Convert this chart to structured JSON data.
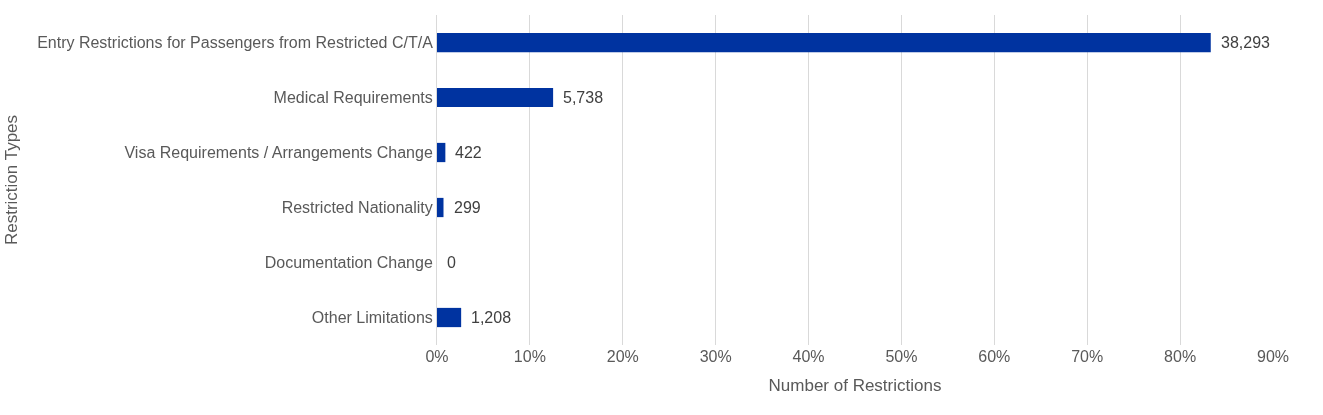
{
  "chart_data": {
    "type": "bar",
    "orientation": "horizontal",
    "xlabel": "Number of Restrictions",
    "ylabel": "Restriction Types",
    "categories": [
      "Entry Restrictions for Passengers from Restricted C/T/A",
      "Medical Requirements",
      "Visa Requirements / Arrangements Change",
      "Restricted Nationality",
      "Documentation Change",
      "Other Limitations"
    ],
    "values": [
      83.3,
      12.5,
      0.9,
      0.7,
      0,
      2.6
    ],
    "annotations": [
      {
        "text": "38,293",
        "x": 83.3,
        "y": "Entry Restrictions for Passengers from Restricted C/T/A"
      },
      {
        "text": "5,738",
        "x": 12.5,
        "y": "Medical Requirements"
      },
      {
        "text": "422",
        "x": 0.9,
        "y": "Visa Requirements / Arrangements Change"
      },
      {
        "text": "299",
        "x": 0.7,
        "y": "Restricted Nationality"
      },
      {
        "text": "0",
        "x": 0,
        "y": "Documentation Change"
      },
      {
        "text": "1,208",
        "x": 2.6,
        "y": "Other Limitations"
      }
    ],
    "color": "#0033a0",
    "xlim": [
      0,
      90
    ],
    "xticks": [
      {
        "value": 0,
        "label": "0%"
      },
      {
        "value": 10,
        "label": "10%"
      },
      {
        "value": 20,
        "label": "20%"
      },
      {
        "value": 30,
        "label": "30%"
      },
      {
        "value": 40,
        "label": "40%"
      },
      {
        "value": 50,
        "label": "50%"
      },
      {
        "value": 60,
        "label": "60%"
      },
      {
        "value": 70,
        "label": "70%"
      },
      {
        "value": 80,
        "label": "80%"
      },
      {
        "value": 90,
        "label": "90%"
      }
    ],
    "grid": "x"
  }
}
